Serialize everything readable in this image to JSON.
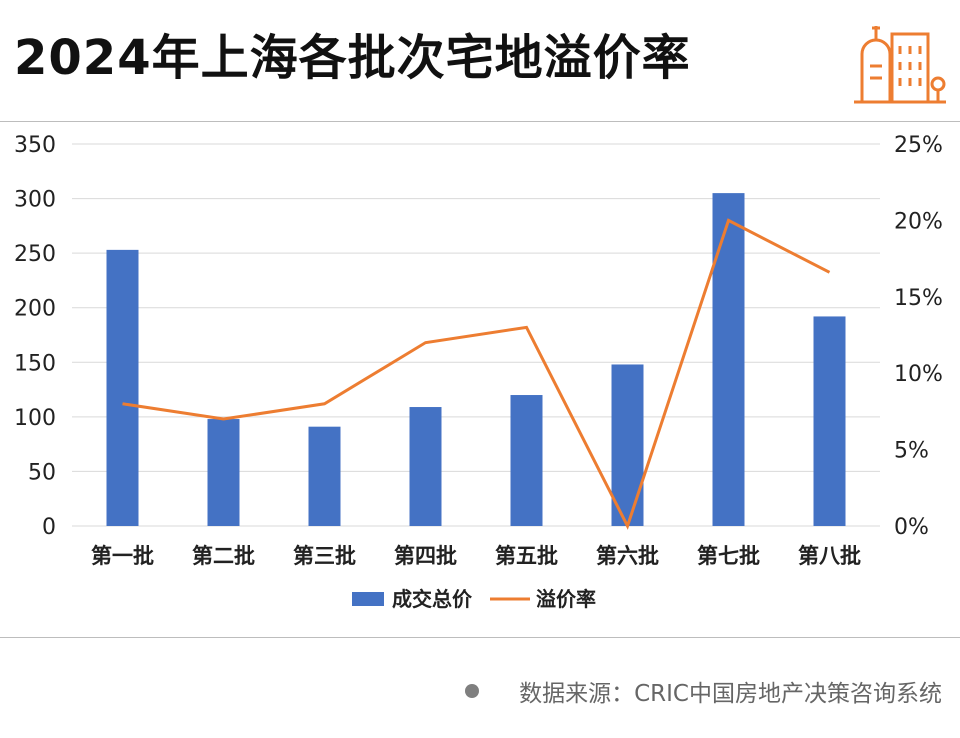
{
  "header": {
    "title": "2024年上海各批次宅地溢价率",
    "logo_icon": "buildings-icon"
  },
  "footer": {
    "source": "数据来源：CRIC中国房地产决策咨询系统"
  },
  "colors": {
    "bar": "#4472C4",
    "line": "#ED7D31",
    "grid": "#d9d9d9"
  },
  "chart_data": {
    "type": "bar",
    "categories": [
      "第一批",
      "第二批",
      "第三批",
      "第四批",
      "第五批",
      "第六批",
      "第七批",
      "第八批"
    ],
    "series": [
      {
        "name": "成交总价",
        "type": "bar",
        "axis": "left",
        "values": [
          253,
          98,
          91,
          109,
          120,
          148,
          305,
          192
        ]
      },
      {
        "name": "溢价率",
        "type": "line",
        "axis": "right",
        "values": [
          8,
          7,
          8,
          12,
          13,
          0,
          20,
          16.6
        ]
      }
    ],
    "yleft": {
      "min": 0,
      "max": 350,
      "ticks": [
        0,
        50,
        100,
        150,
        200,
        250,
        300,
        350
      ]
    },
    "yright": {
      "min": 0,
      "max": 25,
      "ticks": [
        "0%",
        "5%",
        "10%",
        "15%",
        "20%",
        "25%"
      ]
    },
    "grid": true,
    "legend": "bottom"
  }
}
